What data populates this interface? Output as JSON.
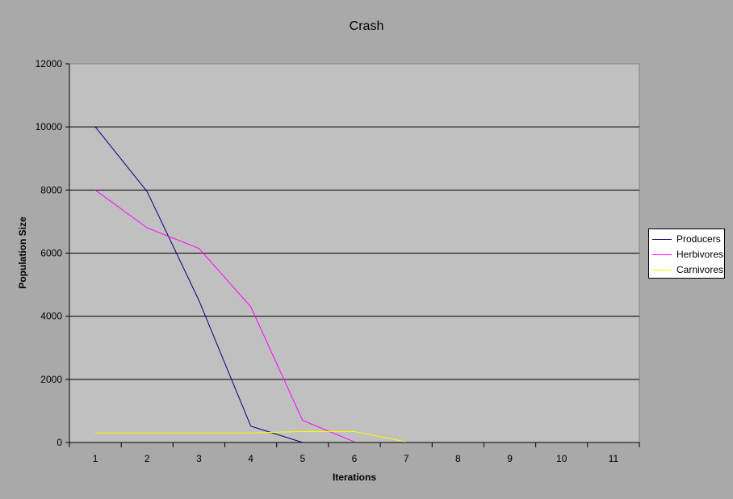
{
  "chart_data": {
    "type": "line",
    "title": "Crash",
    "xlabel": "Iterations",
    "ylabel": "Population Size",
    "categories": [
      "1",
      "2",
      "3",
      "4",
      "5",
      "6",
      "7",
      "8",
      "9",
      "10",
      "11"
    ],
    "ylim": [
      0,
      12000
    ],
    "yticks": [
      "0",
      "2000",
      "4000",
      "6000",
      "8000",
      "10000",
      "12000"
    ],
    "grid": true,
    "legend_position": "right",
    "plot_background": "#c0c0c0",
    "page_background": "#a9a9a9",
    "series": [
      {
        "name": "Producers",
        "color": "#000080",
        "values": [
          10000,
          7950,
          4500,
          520,
          0,
          null,
          null,
          null,
          null,
          null,
          null
        ]
      },
      {
        "name": "Herbivores",
        "color": "#ff00ff",
        "values": [
          8000,
          6800,
          6150,
          4300,
          700,
          20,
          null,
          null,
          null,
          null,
          null
        ]
      },
      {
        "name": "Carnivores",
        "color": "#ffff00",
        "values": [
          300,
          300,
          300,
          300,
          350,
          350,
          20,
          null,
          null,
          null,
          null
        ]
      }
    ]
  }
}
